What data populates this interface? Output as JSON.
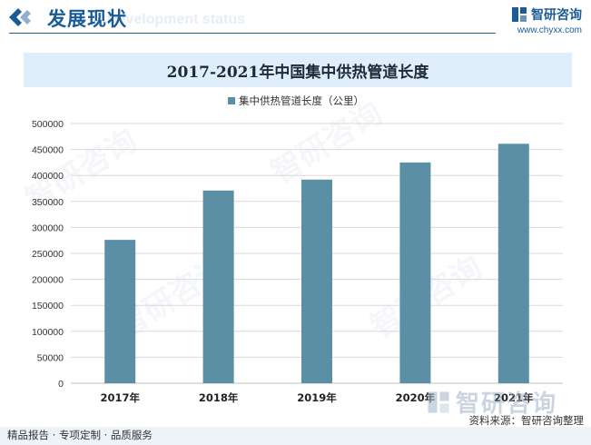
{
  "header": {
    "section_title": "发展现状",
    "watermark_text": "Development status",
    "brand_name": "智研咨询",
    "brand_url": "www.chyxx.com"
  },
  "chart_data": {
    "type": "bar",
    "title": "2017-2021年中国集中供热管道长度",
    "categories": [
      "2017年",
      "2018年",
      "2019年",
      "2020年",
      "2021年"
    ],
    "series": [
      {
        "name": "集中供热管道长度（公里）",
        "values": [
          276000,
          371000,
          392000,
          425000,
          461000
        ]
      }
    ],
    "ylim": [
      0,
      500000
    ],
    "yticks": [
      0,
      50000,
      100000,
      150000,
      200000,
      250000,
      300000,
      350000,
      400000,
      450000,
      500000
    ],
    "grid": true,
    "legend_position": "top-center",
    "bar_color": "#5b8fa6"
  },
  "watermark": {
    "text": "智研咨询"
  },
  "footer": {
    "left_text": "精品报告 · 专项定制 · 品质服务",
    "source_text": "资料来源：智研咨询整理",
    "logo_text": "智研咨询"
  }
}
